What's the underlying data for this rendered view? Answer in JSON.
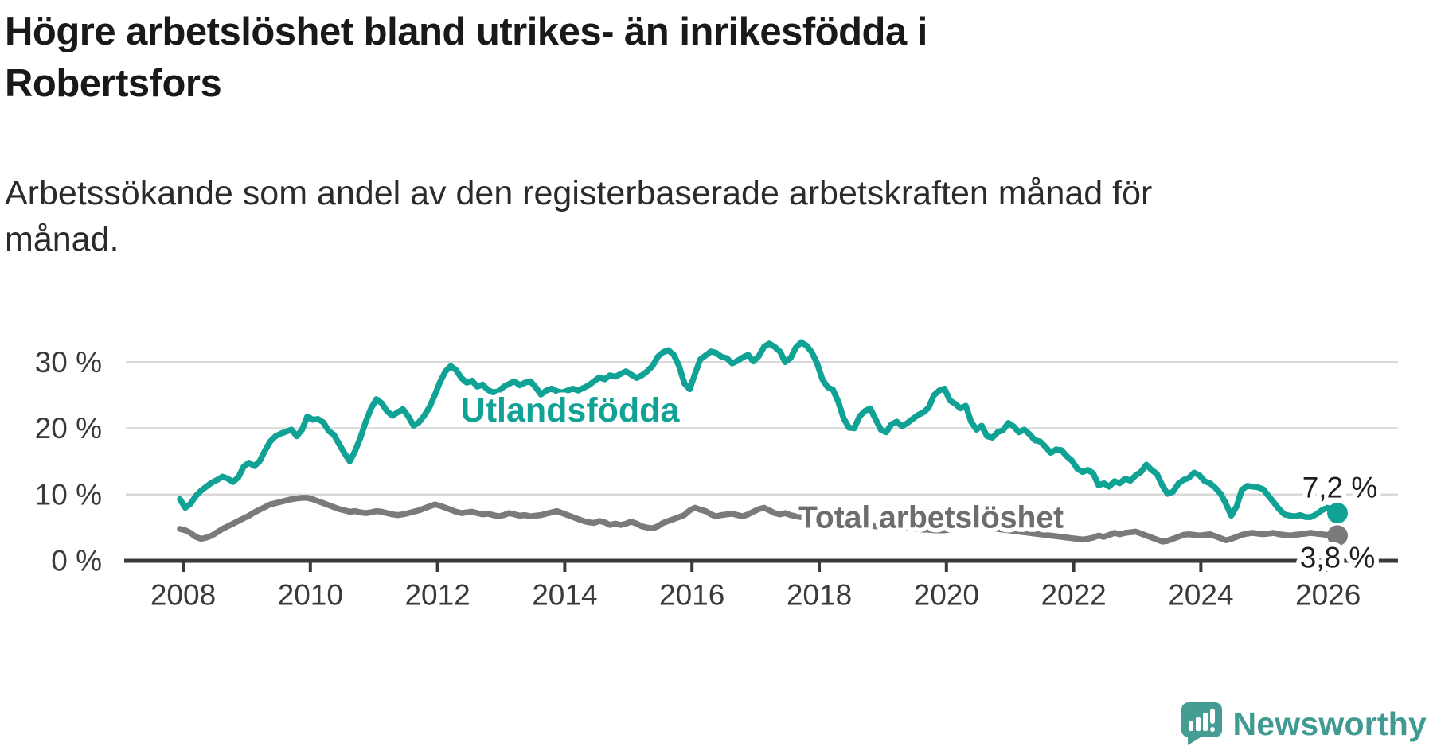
{
  "title": {
    "lines": [
      "Högre arbetslöshet bland utrikes- än inrikesfödda i",
      "Robertsfors"
    ]
  },
  "subtitle": {
    "lines": [
      "Arbetssökande som andel av den registerbaserade arbetskraften månad för",
      "månad."
    ]
  },
  "footer": {
    "brand": "Newsworthy"
  },
  "colors": {
    "accent_teal": "#10a295",
    "label_teal": "#10a295",
    "line_gray": "#7a7a7a",
    "label_gray": "#6d6d6d",
    "axis": "#3a3a3a",
    "grid": "#d9d9d9",
    "end_label_text": "#1f1f1f",
    "logo_teal": "#459c93"
  },
  "chart_data": {
    "type": "line",
    "frequency": "monthly",
    "x_range": [
      "2008-01",
      "2026-02"
    ],
    "ylim": [
      0,
      34
    ],
    "grid": "horizontal",
    "legend_position": "inline-labels",
    "x_axis": {
      "tick_labels": [
        "2008",
        "2010",
        "2012",
        "2014",
        "2016",
        "2018",
        "2020",
        "2022",
        "2024",
        "2026"
      ]
    },
    "y_axis": {
      "ticks": [
        {
          "label": "0 %",
          "value": 0
        },
        {
          "label": "10 %",
          "value": 10
        },
        {
          "label": "20 %",
          "value": 20
        },
        {
          "label": "30 %",
          "value": 30
        }
      ]
    },
    "series": [
      {
        "name": "Utlandsfödda",
        "color": "#10a295",
        "end_label": "7,2 %",
        "end_value": 7.2,
        "values": [
          9.3,
          8.0,
          8.6,
          9.8,
          10.6,
          11.2,
          11.8,
          12.2,
          12.7,
          12.4,
          11.9,
          12.6,
          14.2,
          14.8,
          14.3,
          15.0,
          16.6,
          18.0,
          18.8,
          19.2,
          19.5,
          19.8,
          18.8,
          19.8,
          21.8,
          21.3,
          21.4,
          20.9,
          19.6,
          19.0,
          17.6,
          16.2,
          15.0,
          16.6,
          18.6,
          21.0,
          23.0,
          24.4,
          23.8,
          22.6,
          21.9,
          22.4,
          22.9,
          21.8,
          20.4,
          20.9,
          21.9,
          23.2,
          25.0,
          27.0,
          28.6,
          29.4,
          28.8,
          27.6,
          26.9,
          27.2,
          26.3,
          26.6,
          25.8,
          25.4,
          25.6,
          26.3,
          26.7,
          27.1,
          26.5,
          26.9,
          27.1,
          26.2,
          25.1,
          25.7,
          26.0,
          25.6,
          25.4,
          25.7,
          26.0,
          25.7,
          26.1,
          26.5,
          27.1,
          27.7,
          27.4,
          28.0,
          27.8,
          28.2,
          28.6,
          28.1,
          27.6,
          28.0,
          28.6,
          29.4,
          30.8,
          31.5,
          31.8,
          31.1,
          29.4,
          26.8,
          25.9,
          28.2,
          30.4,
          31.0,
          31.6,
          31.4,
          30.8,
          30.6,
          29.8,
          30.2,
          30.7,
          31.1,
          30.1,
          30.9,
          32.3,
          32.8,
          32.3,
          31.6,
          30.0,
          30.6,
          32.2,
          33.0,
          32.5,
          31.5,
          29.8,
          27.4,
          26.2,
          25.8,
          24.0,
          21.5,
          20.1,
          20.0,
          21.8,
          22.6,
          23.0,
          21.4,
          19.8,
          19.4,
          20.6,
          21.0,
          20.3,
          20.8,
          21.4,
          22.0,
          22.4,
          23.1,
          25.0,
          25.7,
          26.0,
          24.2,
          23.7,
          23.0,
          23.4,
          21.0,
          19.8,
          20.4,
          18.8,
          18.6,
          19.4,
          19.7,
          20.8,
          20.3,
          19.4,
          19.8,
          19.1,
          18.2,
          18.0,
          17.2,
          16.3,
          16.8,
          16.7,
          15.8,
          15.1,
          13.9,
          13.4,
          13.7,
          13.2,
          11.4,
          11.7,
          11.2,
          12.0,
          11.7,
          12.4,
          12.1,
          12.9,
          13.4,
          14.5,
          13.7,
          13.1,
          11.4,
          10.1,
          10.4,
          11.6,
          12.2,
          12.5,
          13.3,
          12.9,
          12.0,
          11.7,
          11.0,
          10.1,
          8.6,
          6.8,
          8.2,
          10.7,
          11.3,
          11.2,
          11.1,
          10.8,
          9.8,
          8.8,
          7.8,
          7.0,
          6.8,
          6.7,
          6.9,
          6.6,
          6.6,
          7.0,
          7.6,
          8.0,
          7.8,
          7.2
        ]
      },
      {
        "name": "Total arbetslöshet",
        "color": "#7a7a7a",
        "end_label": "3,8 %",
        "end_value": 3.8,
        "values": [
          4.8,
          4.6,
          4.2,
          3.6,
          3.3,
          3.5,
          3.8,
          4.3,
          4.8,
          5.2,
          5.6,
          6.0,
          6.4,
          6.8,
          7.3,
          7.7,
          8.1,
          8.5,
          8.7,
          8.9,
          9.1,
          9.3,
          9.4,
          9.5,
          9.5,
          9.3,
          9.0,
          8.7,
          8.4,
          8.1,
          7.8,
          7.6,
          7.4,
          7.5,
          7.3,
          7.2,
          7.3,
          7.5,
          7.4,
          7.2,
          7.0,
          6.9,
          7.0,
          7.2,
          7.4,
          7.6,
          7.9,
          8.2,
          8.5,
          8.3,
          8.0,
          7.7,
          7.4,
          7.2,
          7.3,
          7.4,
          7.2,
          7.0,
          7.1,
          6.9,
          6.7,
          6.9,
          7.2,
          7.0,
          6.8,
          6.9,
          6.7,
          6.8,
          6.9,
          7.1,
          7.3,
          7.5,
          7.2,
          6.9,
          6.6,
          6.3,
          6.0,
          5.8,
          5.7,
          6.0,
          5.8,
          5.4,
          5.6,
          5.4,
          5.6,
          5.9,
          5.6,
          5.2,
          5.0,
          4.9,
          5.2,
          5.7,
          6.0,
          6.3,
          6.6,
          6.9,
          7.6,
          8.0,
          7.7,
          7.5,
          7.0,
          6.7,
          6.9,
          7.0,
          7.1,
          6.9,
          6.7,
          7.0,
          7.4,
          7.8,
          8.0,
          7.6,
          7.2,
          7.0,
          7.2,
          6.9,
          6.7,
          6.6,
          6.5,
          6.4,
          6.3,
          6.2,
          6.1,
          6.0,
          5.9,
          5.8,
          5.7,
          5.6,
          5.5,
          5.4,
          5.3,
          5.2,
          5.1,
          5.1,
          5.0,
          5.0,
          4.9,
          4.9,
          4.8,
          4.8,
          4.7,
          4.7,
          4.6,
          4.6,
          4.6,
          4.7,
          4.9,
          5.1,
          5.2,
          5.3,
          5.2,
          5.1,
          5.0,
          4.9,
          4.8,
          4.7,
          4.6,
          4.5,
          4.4,
          4.3,
          4.2,
          4.1,
          4.0,
          3.9,
          3.8,
          3.7,
          3.6,
          3.5,
          3.4,
          3.3,
          3.2,
          3.3,
          3.5,
          3.8,
          3.6,
          3.9,
          4.2,
          4.0,
          4.2,
          4.3,
          4.4,
          4.1,
          3.8,
          3.5,
          3.2,
          2.9,
          3.0,
          3.3,
          3.6,
          3.9,
          4.0,
          3.9,
          3.8,
          3.9,
          4.0,
          3.7,
          3.4,
          3.1,
          3.3,
          3.6,
          3.9,
          4.1,
          4.2,
          4.1,
          4.0,
          4.1,
          4.2,
          4.0,
          3.9,
          3.8,
          3.9,
          4.0,
          4.1,
          4.2,
          4.1,
          4.0,
          3.9,
          3.9,
          3.8
        ]
      }
    ]
  }
}
